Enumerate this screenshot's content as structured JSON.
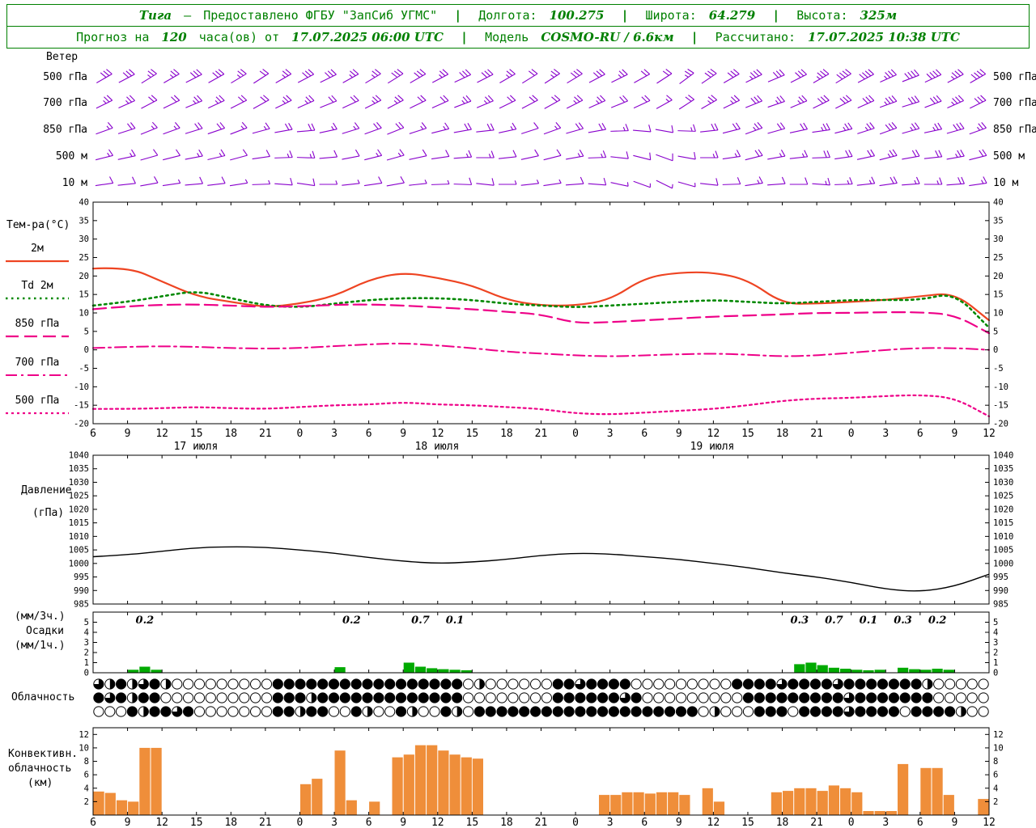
{
  "header": {
    "accent_color": "#008000",
    "row1": {
      "station": "Тига",
      "dash": "—",
      "provided": "Предоставлено ФГБУ \"ЗапСиб УГМС\"",
      "sep": "|",
      "lon_label": "Долгота:",
      "lon": "100.275",
      "lat_label": "Широта:",
      "lat": "64.279",
      "alt_label": "Высота:",
      "alt": "325м"
    },
    "row2": {
      "forecast_prefix": "Прогноз на",
      "forecast_hours": "120",
      "forecast_mid": "часа(ов) от",
      "forecast_time": "17.07.2025 06:00 UTC",
      "sep": "|",
      "model_label": "Модель",
      "model": "COSMO-RU / 6.6км",
      "calc_label": "Рассчитано:",
      "calc_time": "17.07.2025 10:38 UTC"
    }
  },
  "panels": {
    "wind": {
      "title": "Ветер",
      "levels": [
        "500 гПа",
        "700 гПа",
        "850 гПа",
        "500 м",
        "10 м"
      ]
    },
    "temp": {
      "title": "Тем-ра(°C)"
    },
    "pressure": {
      "title_line1": "Давление",
      "title_line2": "(гПа)"
    },
    "precip": {
      "title_line1": "(мм/3ч.)",
      "title_line2": "Осадки",
      "title_line3": "(мм/1ч.)"
    },
    "cloud": {
      "title": "Облачность"
    },
    "conv": {
      "title_line1": "Конвективн.",
      "title_line2": "облачность",
      "title_line3": "(км)"
    }
  },
  "axis": {
    "hour_labels": [
      "6",
      "9",
      "12",
      "15",
      "18",
      "21",
      "0",
      "3",
      "6",
      "9",
      "12",
      "15",
      "18",
      "21",
      "0",
      "3",
      "6",
      "9",
      "12",
      "15",
      "18",
      "21",
      "0",
      "3",
      "6",
      "9",
      "12"
    ],
    "date_labels": [
      "17 июля",
      "18 июля",
      "19 июля"
    ]
  },
  "chart_data": [
    {
      "name": "wind",
      "type": "wind-barbs",
      "color": "#8800cc",
      "rows": [
        {
          "level": "500 гПа",
          "angles": [
            60,
            62,
            58,
            60,
            63,
            61,
            59,
            57,
            60,
            62,
            64,
            61,
            59,
            58,
            60,
            62,
            65,
            63,
            60,
            58,
            57,
            59,
            62,
            64,
            61,
            57,
            53,
            56,
            60,
            64,
            67,
            63,
            60,
            59,
            62,
            66,
            69,
            65,
            62,
            60
          ],
          "speeds": [
            3,
            3,
            2.5,
            2.5,
            3,
            3,
            2.5,
            2,
            2.5,
            3,
            3,
            2.5,
            2.5,
            3,
            3,
            2.5,
            3,
            3,
            2.5,
            2,
            2.5,
            3,
            3,
            2.5,
            2,
            2,
            2.5,
            3,
            3,
            3.5,
            3,
            3,
            3.5,
            4,
            4,
            3.5,
            4,
            4,
            3.5,
            4
          ]
        },
        {
          "level": "700 гПа",
          "angles": [
            64,
            66,
            62,
            64,
            67,
            65,
            63,
            61,
            64,
            66,
            68,
            65,
            63,
            62,
            64,
            66,
            69,
            67,
            64,
            62,
            61,
            63,
            66,
            68,
            65,
            61,
            57,
            60,
            64,
            68,
            71,
            67,
            64,
            63,
            66,
            70,
            73,
            69,
            66,
            64
          ],
          "speeds": [
            2.5,
            2.5,
            2,
            2,
            2.5,
            2.5,
            2,
            2,
            2.5,
            2.5,
            2,
            2,
            2.5,
            2.5,
            2,
            2,
            2.5,
            2.5,
            2,
            2,
            2,
            2.5,
            2.5,
            2,
            2,
            1.5,
            2,
            2.5,
            2.5,
            3,
            2.5,
            2.5,
            3,
            3,
            3,
            3.5,
            3,
            3,
            3.5,
            3
          ]
        },
        {
          "level": "850 гПа",
          "angles": [
            70,
            72,
            68,
            70,
            73,
            71,
            69,
            75,
            80,
            85,
            78,
            73,
            70,
            68,
            72,
            76,
            80,
            84,
            78,
            72,
            70,
            74,
            80,
            88,
            95,
            100,
            92,
            84,
            76,
            70,
            74,
            78,
            82,
            76,
            72,
            70,
            74,
            78,
            74,
            70
          ],
          "speeds": [
            1.5,
            2,
            1.5,
            1.5,
            2,
            2,
            1.5,
            1.5,
            2,
            2,
            1.5,
            1.5,
            2,
            2,
            1.5,
            1.5,
            2,
            2,
            1.5,
            1,
            1.5,
            2,
            2,
            1.5,
            1,
            1,
            1.5,
            2,
            2,
            2.5,
            2,
            2,
            2.5,
            2.5,
            2.5,
            3,
            2.5,
            2.5,
            3,
            2.5
          ]
        },
        {
          "level": "500 м",
          "angles": [
            76,
            78,
            74,
            76,
            79,
            77,
            75,
            82,
            88,
            92,
            85,
            79,
            76,
            74,
            78,
            82,
            86,
            90,
            84,
            78,
            76,
            80,
            88,
            96,
            104,
            110,
            100,
            90,
            82,
            76,
            80,
            84,
            88,
            82,
            78,
            76,
            80,
            84,
            80,
            76
          ],
          "speeds": [
            1.5,
            1.5,
            1,
            1,
            1.5,
            1.5,
            1,
            1,
            1.5,
            1.5,
            1,
            1,
            1.5,
            1.5,
            1,
            1,
            1.5,
            1.5,
            1,
            1,
            1,
            1.5,
            1.5,
            1,
            1,
            1,
            1,
            1.5,
            1.5,
            2,
            1.5,
            1.5,
            2,
            2,
            2,
            2.5,
            2,
            2,
            2.5,
            2
          ]
        },
        {
          "level": "10 м",
          "angles": [
            82,
            84,
            80,
            82,
            85,
            83,
            81,
            88,
            94,
            98,
            90,
            84,
            82,
            80,
            84,
            88,
            92,
            96,
            90,
            84,
            82,
            86,
            94,
            102,
            110,
            116,
            106,
            96,
            88,
            82,
            86,
            90,
            94,
            88,
            84,
            82,
            86,
            90,
            86,
            82
          ],
          "speeds": [
            1,
            1,
            1,
            0.5,
            1,
            1,
            0.5,
            0.5,
            1,
            1,
            0.5,
            0.5,
            1,
            1,
            0.5,
            0.5,
            1,
            1,
            0.5,
            0.5,
            0.5,
            1,
            1,
            0.5,
            0.5,
            0.5,
            0.5,
            1,
            1,
            1.5,
            1,
            1,
            1.5,
            1.5,
            1.5,
            2,
            1.5,
            1.5,
            2,
            1.5
          ]
        }
      ]
    },
    {
      "name": "temperature",
      "type": "line",
      "title": "Тем-ра(°C)",
      "ylim": [
        -20,
        40
      ],
      "ytick_step": 5,
      "x_step_hours": 3,
      "series": [
        {
          "name": "2м",
          "color": "#ee4422",
          "style": "solid",
          "values": [
            22,
            22.5,
            18.5,
            14.5,
            13,
            11.5,
            12.5,
            14.5,
            19,
            21,
            19.5,
            17.5,
            13.5,
            12,
            12,
            13.5,
            19.5,
            21,
            21,
            19,
            12.5,
            12.5,
            13,
            13.5,
            14.5,
            15.5,
            8
          ]
        },
        {
          "name": "Td 2м",
          "color": "#008800",
          "style": "dotted",
          "values": [
            12,
            13,
            14.5,
            16,
            14,
            12,
            11.5,
            12.5,
            13.5,
            14,
            14,
            13.5,
            12.5,
            12,
            11.5,
            12,
            12.5,
            13,
            13.5,
            13,
            12.5,
            13,
            13.5,
            13.5,
            13.5,
            15.5,
            6
          ]
        },
        {
          "name": "850 гПа",
          "color": "#ee0088",
          "style": "dashed",
          "values": [
            11,
            11.8,
            12.2,
            12.3,
            12,
            11.6,
            11.8,
            12.2,
            12.3,
            12,
            11.5,
            11,
            10.3,
            9.6,
            7.2,
            7.5,
            8,
            8.5,
            9,
            9.3,
            9.6,
            10,
            10,
            10.2,
            10.2,
            9.5,
            4.5
          ]
        },
        {
          "name": "700 гПа",
          "color": "#ee0088",
          "style": "dashdot",
          "values": [
            0.5,
            0.8,
            1,
            0.8,
            0.5,
            0.3,
            0.5,
            1,
            1.5,
            1.8,
            1.2,
            0.5,
            -0.5,
            -1,
            -1.5,
            -1.8,
            -1.5,
            -1.2,
            -1,
            -1.3,
            -1.8,
            -1.5,
            -0.8,
            0,
            0.5,
            0.5,
            0
          ]
        },
        {
          "name": "500 гПа",
          "color": "#ee0088",
          "style": "fine-dotted",
          "values": [
            -16,
            -16,
            -15.8,
            -15.5,
            -15.8,
            -16,
            -15.5,
            -15,
            -14.8,
            -14.2,
            -14.8,
            -15,
            -15.5,
            -16,
            -17.2,
            -17.5,
            -17,
            -16.5,
            -16,
            -15,
            -13.8,
            -13.2,
            -13,
            -12.5,
            -12.2,
            -13,
            -18
          ]
        }
      ]
    },
    {
      "name": "pressure",
      "type": "line",
      "ylabel": "гПа",
      "ylim": [
        985,
        1040
      ],
      "ytick_step": 5,
      "series": [
        {
          "name": "Давление",
          "color": "#000000",
          "style": "solid",
          "values": [
            1002.5,
            1003.2,
            1004.5,
            1005.8,
            1006.2,
            1006,
            1005,
            1003.8,
            1002.2,
            1000.8,
            1000,
            1000.5,
            1001.5,
            1003,
            1003.8,
            1003.5,
            1002.5,
            1001.5,
            1000,
            998.5,
            996.5,
            995,
            993,
            990.5,
            989.5,
            991.5,
            996
          ]
        }
      ]
    },
    {
      "name": "precipitation",
      "type": "bar",
      "color": "#00aa00",
      "label_color": "#000000",
      "ylim": [
        0,
        6
      ],
      "ytick_labels": [
        5,
        4,
        3,
        2,
        1,
        0
      ],
      "bar_width_hours": 1,
      "bars": [
        [
          3,
          0.3
        ],
        [
          4,
          0.6
        ],
        [
          5,
          0.3
        ],
        [
          21,
          0.55
        ],
        [
          27,
          1.0
        ],
        [
          28,
          0.6
        ],
        [
          29,
          0.45
        ],
        [
          30,
          0.35
        ],
        [
          31,
          0.3
        ],
        [
          32,
          0.25
        ],
        [
          61,
          0.85
        ],
        [
          62,
          1.0
        ],
        [
          63,
          0.75
        ],
        [
          64,
          0.5
        ],
        [
          65,
          0.4
        ],
        [
          66,
          0.3
        ],
        [
          67,
          0.25
        ],
        [
          68,
          0.3
        ],
        [
          70,
          0.5
        ],
        [
          71,
          0.35
        ],
        [
          72,
          0.3
        ],
        [
          73,
          0.4
        ],
        [
          74,
          0.3
        ]
      ],
      "labels": [
        [
          4.5,
          "0.2"
        ],
        [
          22.5,
          "0.2"
        ],
        [
          28.5,
          "0.7"
        ],
        [
          31.5,
          "0.1"
        ],
        [
          61.5,
          "0.3"
        ],
        [
          64.5,
          "0.7"
        ],
        [
          67.5,
          "0.1"
        ],
        [
          70.5,
          "0.3"
        ],
        [
          73.5,
          "0.2"
        ]
      ]
    },
    {
      "name": "cloud_cover",
      "type": "symbol-rows",
      "symbol": "circle-fill-fraction",
      "scale_note": "0=clear ... 4=overcast (quarters of circle filled)",
      "rows": [
        "32423420000000004444444444444444402000000443444400000000044443444434444444200000",
        "43424400000000004442444444444444400000000444444340000000004444444443444444400000",
        "00042443400000004424400420042004204444444444444444444402000444044443444404444200"
      ]
    },
    {
      "name": "convective_cloudiness",
      "type": "bar",
      "color": "#ef8e3a",
      "ylim": [
        0,
        13
      ],
      "yticks": [
        2,
        4,
        6,
        8,
        10,
        12
      ],
      "bars": [
        [
          0,
          3.5
        ],
        [
          1,
          3.3
        ],
        [
          2,
          2.2
        ],
        [
          3,
          2.0
        ],
        [
          4,
          10
        ],
        [
          5,
          10
        ],
        [
          18,
          4.6
        ],
        [
          19,
          5.4
        ],
        [
          21,
          9.6
        ],
        [
          22,
          2.2
        ],
        [
          24,
          2.0
        ],
        [
          26,
          8.6
        ],
        [
          27,
          9.0
        ],
        [
          28,
          10.4
        ],
        [
          29,
          10.4
        ],
        [
          30,
          9.6
        ],
        [
          31,
          9.0
        ],
        [
          32,
          8.6
        ],
        [
          33,
          8.4
        ],
        [
          44,
          3.0
        ],
        [
          45,
          3.0
        ],
        [
          46,
          3.4
        ],
        [
          47,
          3.4
        ],
        [
          48,
          3.2
        ],
        [
          49,
          3.4
        ],
        [
          50,
          3.4
        ],
        [
          51,
          3.0
        ],
        [
          53,
          4.0
        ],
        [
          54,
          2.0
        ],
        [
          59,
          3.4
        ],
        [
          60,
          3.6
        ],
        [
          61,
          4.0
        ],
        [
          62,
          4.0
        ],
        [
          63,
          3.6
        ],
        [
          64,
          4.4
        ],
        [
          65,
          4.0
        ],
        [
          66,
          3.4
        ],
        [
          67,
          0.6
        ],
        [
          68,
          0.6
        ],
        [
          69,
          0.6
        ],
        [
          70,
          7.6
        ],
        [
          72,
          7.0
        ],
        [
          73,
          7.0
        ],
        [
          74,
          3.0
        ],
        [
          77,
          2.4
        ]
      ]
    }
  ]
}
